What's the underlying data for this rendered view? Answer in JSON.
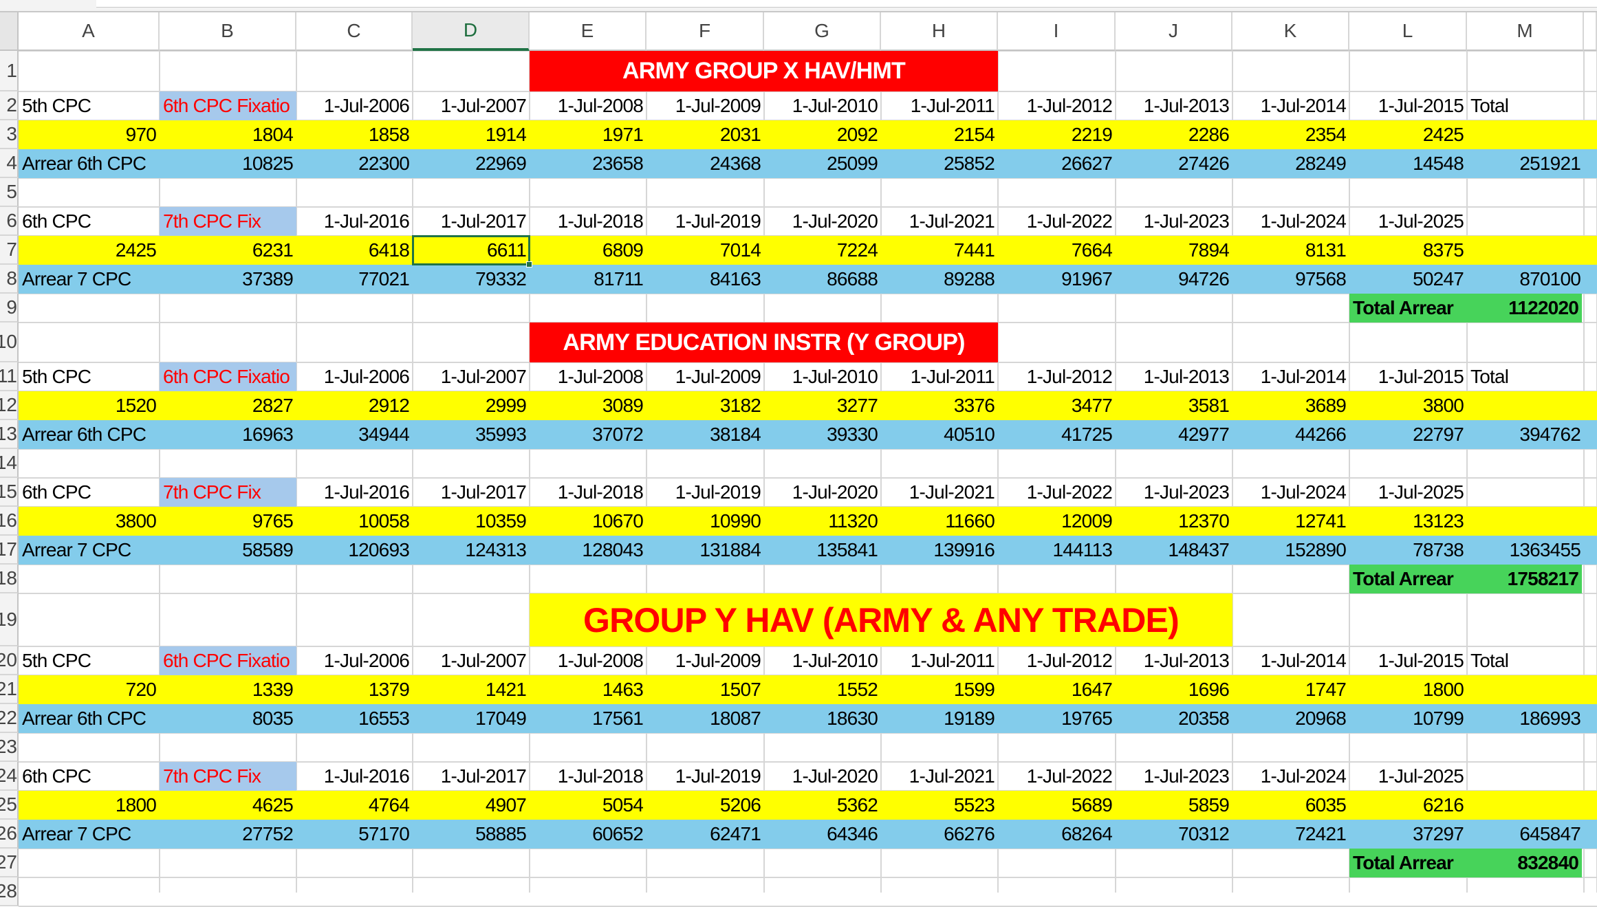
{
  "column_headers": [
    "A",
    "B",
    "C",
    "D",
    "E",
    "F",
    "G",
    "H",
    "I",
    "J",
    "K",
    "L",
    "M"
  ],
  "selected_cell": "D7",
  "colors": {
    "yellow": "#ffff00",
    "blue": "#83cceb",
    "label_blue": "#a6c9ec",
    "red": "#ff0000",
    "green": "#47d35a",
    "select": "#217346"
  },
  "labels": {
    "fifth_cpc": "5th CPC",
    "sixth_fix": "6th CPC Fixatio",
    "total": "Total",
    "arrear6": "Arrear 6th CPC",
    "sixth_cpc": "6th CPC",
    "seventh_fix": "7th  CPC Fix",
    "arrear7": "Arrear 7 CPC",
    "total_arrear": "Total Arrear"
  },
  "dates_6th": [
    "1-Jul-2006",
    "1-Jul-2007",
    "1-Jul-2008",
    "1-Jul-2009",
    "1-Jul-2010",
    "1-Jul-2011",
    "1-Jul-2012",
    "1-Jul-2013",
    "1-Jul-2014",
    "1-Jul-2015"
  ],
  "dates_7th": [
    "1-Jul-2016",
    "1-Jul-2017",
    "1-Jul-2018",
    "1-Jul-2019",
    "1-Jul-2020",
    "1-Jul-2021",
    "1-Jul-2022",
    "1-Jul-2023",
    "1-Jul-2024",
    "1-Jul-2025"
  ],
  "groups": [
    {
      "title": "ARMY GROUP X HAV/HMT",
      "pay6": [
        "970",
        "1804",
        "1858",
        "1914",
        "1971",
        "2031",
        "2092",
        "2154",
        "2219",
        "2286",
        "2354",
        "2425"
      ],
      "arrear6": [
        "10825",
        "22300",
        "22969",
        "23658",
        "24368",
        "25099",
        "25852",
        "26627",
        "27426",
        "28249",
        "14548",
        "251921"
      ],
      "pay7": [
        "2425",
        "6231",
        "6418",
        "6611",
        "6809",
        "7014",
        "7224",
        "7441",
        "7664",
        "7894",
        "8131",
        "8375"
      ],
      "arrear7": [
        "37389",
        "77021",
        "79332",
        "81711",
        "84163",
        "86688",
        "89288",
        "91967",
        "94726",
        "97568",
        "50247",
        "870100"
      ],
      "total_arrear": "1122020"
    },
    {
      "title": "ARMY EDUCATION INSTR (Y GROUP)",
      "pay6": [
        "1520",
        "2827",
        "2912",
        "2999",
        "3089",
        "3182",
        "3277",
        "3376",
        "3477",
        "3581",
        "3689",
        "3800"
      ],
      "arrear6": [
        "16963",
        "34944",
        "35993",
        "37072",
        "38184",
        "39330",
        "40510",
        "41725",
        "42977",
        "44266",
        "22797",
        "394762"
      ],
      "pay7": [
        "3800",
        "9765",
        "10058",
        "10359",
        "10670",
        "10990",
        "11320",
        "11660",
        "12009",
        "12370",
        "12741",
        "13123"
      ],
      "arrear7": [
        "58589",
        "120693",
        "124313",
        "128043",
        "131884",
        "135841",
        "139916",
        "144113",
        "148437",
        "152890",
        "78738",
        "1363455"
      ],
      "total_arrear": "1758217"
    },
    {
      "title": "GROUP Y HAV (ARMY & ANY TRADE)",
      "pay6": [
        "720",
        "1339",
        "1379",
        "1421",
        "1463",
        "1507",
        "1552",
        "1599",
        "1647",
        "1696",
        "1747",
        "1800"
      ],
      "arrear6": [
        "8035",
        "16553",
        "17049",
        "17561",
        "18087",
        "18630",
        "19189",
        "19765",
        "20358",
        "20968",
        "10799",
        "186993"
      ],
      "pay7": [
        "1800",
        "4625",
        "4764",
        "4907",
        "5054",
        "5206",
        "5362",
        "5523",
        "5689",
        "5859",
        "6035",
        "6216"
      ],
      "arrear7": [
        "27752",
        "57170",
        "58885",
        "60652",
        "62471",
        "64346",
        "66276",
        "68264",
        "70312",
        "72421",
        "37297",
        "645847"
      ],
      "total_arrear": "832840"
    }
  ]
}
